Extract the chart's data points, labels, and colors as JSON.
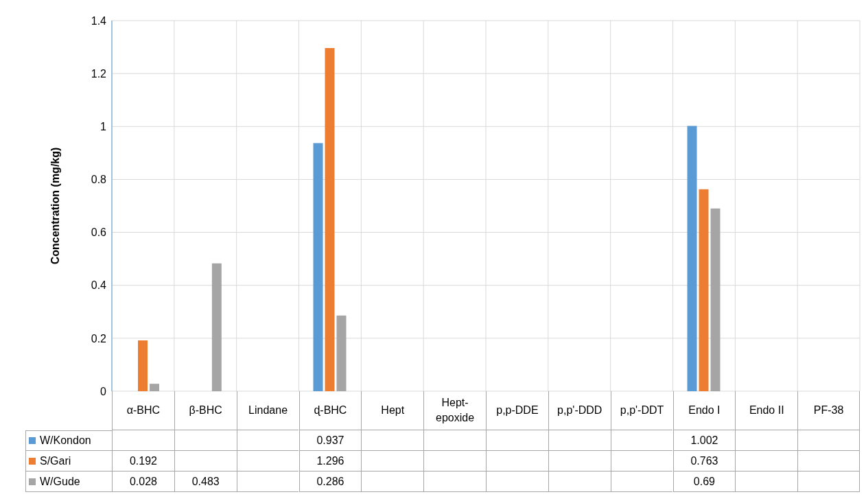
{
  "chart_data": {
    "type": "bar",
    "ylabel": "Concentration (mg/kg)",
    "categories": [
      "α-BHC",
      "β-BHC",
      "Lindane",
      "ɖ-BHC",
      "Hept",
      "Hept-epoxide",
      "p,p-DDE",
      "p,p'-DDD",
      "p,p'-DDT",
      "Endo I",
      "Endo II",
      "PF-38"
    ],
    "series": [
      {
        "name": "W/Kondon",
        "color": "#5b9bd5",
        "values": [
          null,
          null,
          null,
          0.937,
          null,
          null,
          null,
          null,
          null,
          1.002,
          null,
          null
        ]
      },
      {
        "name": "S/Gari",
        "color": "#ed7d31",
        "values": [
          0.192,
          null,
          null,
          1.296,
          null,
          null,
          null,
          null,
          null,
          0.763,
          null,
          null
        ]
      },
      {
        "name": "W/Gude",
        "color": "#a5a5a5",
        "values": [
          0.028,
          0.483,
          null,
          0.286,
          null,
          null,
          null,
          null,
          null,
          0.69,
          null,
          null
        ]
      }
    ],
    "ylim": [
      0,
      1.4
    ],
    "yticks": [
      0,
      0.2,
      0.4,
      0.6,
      0.8,
      1,
      1.2,
      1.4
    ],
    "grid": true,
    "legend": "bottom",
    "data_labels": true
  }
}
